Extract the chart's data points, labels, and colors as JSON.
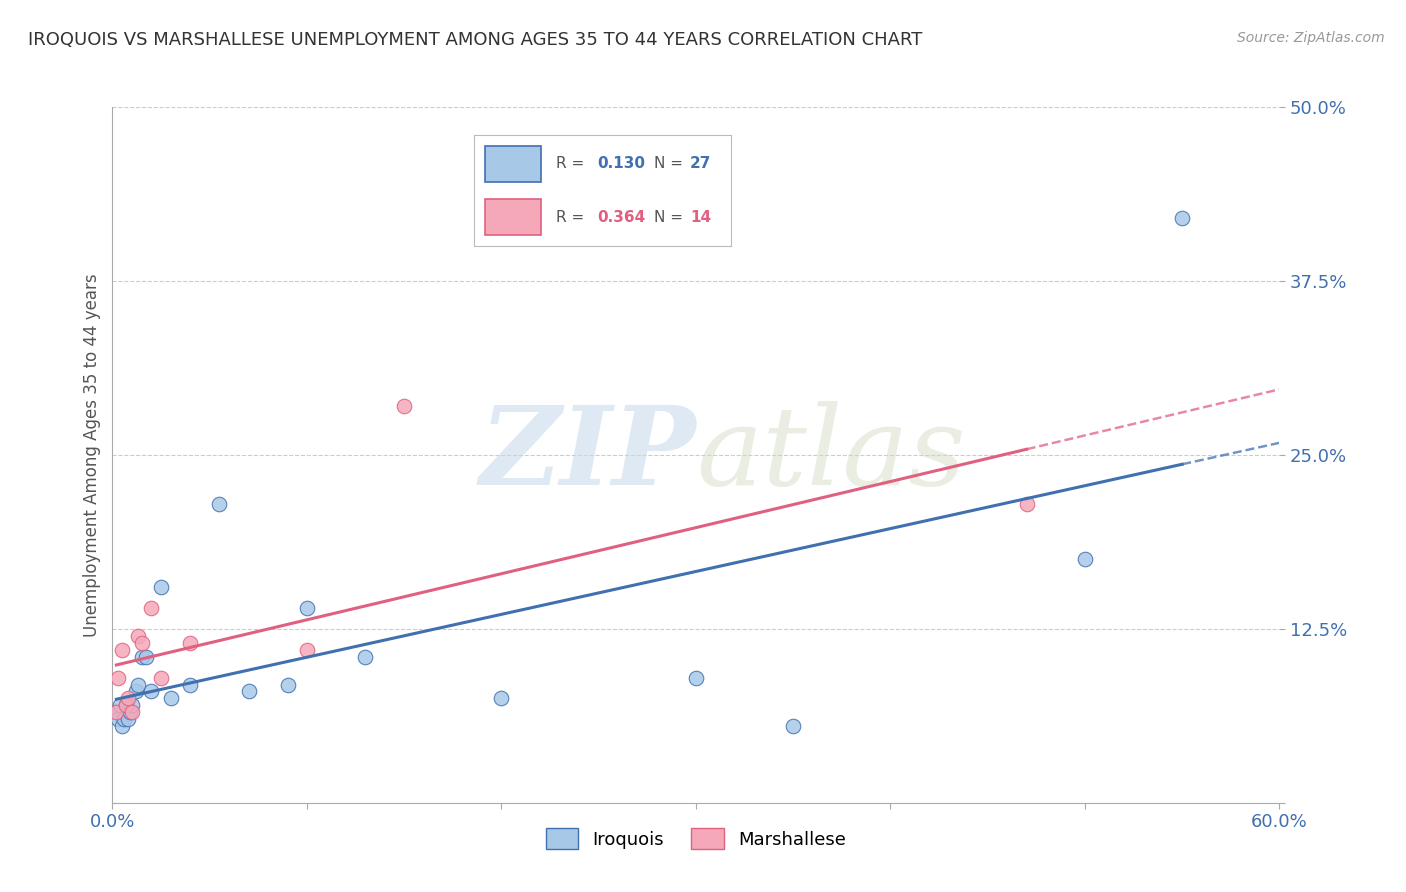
{
  "title": "IROQUOIS VS MARSHALLESE UNEMPLOYMENT AMONG AGES 35 TO 44 YEARS CORRELATION CHART",
  "source": "Source: ZipAtlas.com",
  "ylabel": "Unemployment Among Ages 35 to 44 years",
  "xlim": [
    0.0,
    0.6
  ],
  "ylim": [
    0.0,
    0.5
  ],
  "xticks": [
    0.0,
    0.1,
    0.2,
    0.3,
    0.4,
    0.5,
    0.6
  ],
  "yticks": [
    0.0,
    0.125,
    0.25,
    0.375,
    0.5
  ],
  "ytick_labels": [
    "",
    "12.5%",
    "25.0%",
    "37.5%",
    "50.0%"
  ],
  "iroquois_R": 0.13,
  "iroquois_N": 27,
  "marshallese_R": 0.364,
  "marshallese_N": 14,
  "iroquois_color": "#a8c8e8",
  "marshallese_color": "#f4a8b8",
  "iroquois_line_color": "#4070b0",
  "marshallese_line_color": "#e06080",
  "iroquois_x": [
    0.002,
    0.003,
    0.004,
    0.005,
    0.006,
    0.007,
    0.008,
    0.009,
    0.01,
    0.012,
    0.013,
    0.015,
    0.017,
    0.02,
    0.025,
    0.03,
    0.04,
    0.055,
    0.07,
    0.09,
    0.1,
    0.13,
    0.2,
    0.3,
    0.35,
    0.5,
    0.55
  ],
  "iroquois_y": [
    0.065,
    0.06,
    0.07,
    0.055,
    0.06,
    0.07,
    0.06,
    0.065,
    0.07,
    0.08,
    0.085,
    0.105,
    0.105,
    0.08,
    0.155,
    0.075,
    0.085,
    0.215,
    0.08,
    0.085,
    0.14,
    0.105,
    0.075,
    0.09,
    0.055,
    0.175,
    0.42
  ],
  "marshallese_x": [
    0.002,
    0.003,
    0.005,
    0.007,
    0.008,
    0.01,
    0.013,
    0.015,
    0.02,
    0.025,
    0.04,
    0.1,
    0.15,
    0.47
  ],
  "marshallese_y": [
    0.065,
    0.09,
    0.11,
    0.07,
    0.075,
    0.065,
    0.12,
    0.115,
    0.14,
    0.09,
    0.115,
    0.11,
    0.285,
    0.215
  ],
  "background_color": "#ffffff",
  "grid_color": "#cccccc",
  "watermark_zip": "ZIP",
  "watermark_atlas": "atlas",
  "marker_size": 110
}
